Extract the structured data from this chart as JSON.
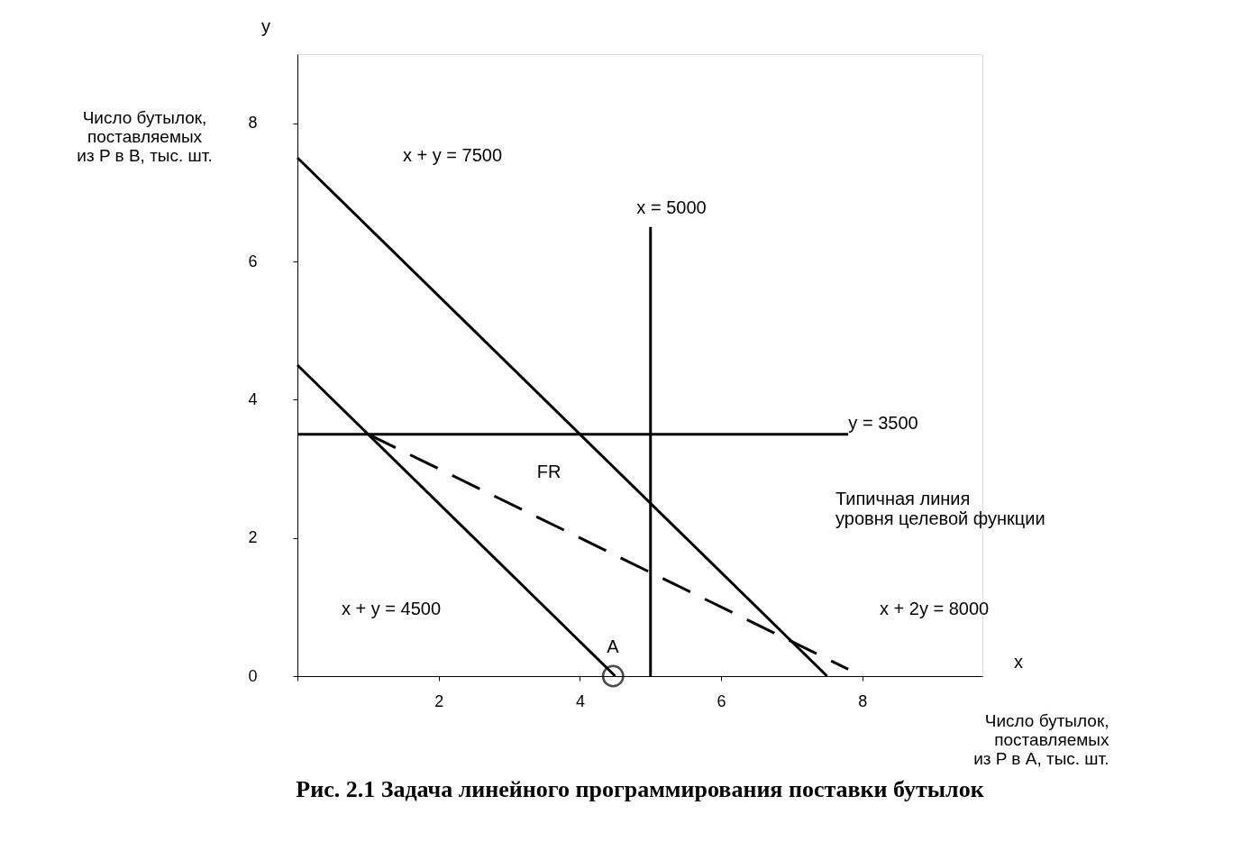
{
  "chart_data": {
    "type": "line",
    "title": "Рис. 2.1   Задача линейного программирования поставки бутылок",
    "xlabel": "Число бутылок,\nпоставляемых\nиз P в A, тыс. шт.",
    "ylabel": "Число бутылок,\nпоставляемых\nиз P в B, тыс. шт.",
    "xlim": [
      0,
      9.7
    ],
    "ylim": [
      0,
      9
    ],
    "xticks": [
      {
        "value": 0,
        "label": null
      },
      2,
      4,
      6,
      8
    ],
    "yticks": [
      0,
      2,
      4,
      6,
      8
    ],
    "grid": false,
    "series": [
      {
        "color": "#000000",
        "x": [
          0,
          7.5
        ],
        "values": [
          7.5,
          0
        ]
      },
      {
        "color": "#000000",
        "x": [
          0,
          4.5
        ],
        "values": [
          4.5,
          0
        ]
      },
      {
        "color": "#000000",
        "x": [
          5,
          5
        ],
        "values": [
          0,
          6.5
        ]
      },
      {
        "color": "#000000",
        "x": [
          0,
          7.8
        ],
        "values": [
          3.5,
          3.5
        ]
      },
      {
        "color": "#000000",
        "x": [
          1,
          7.8
        ],
        "values": [
          3.5,
          0.1
        ],
        "line_style": "dashed"
      },
      {
        "color": "#000000",
        "type": "scatter",
        "marker": "circle",
        "x": [
          4.47
        ],
        "values": [
          0
        ]
      }
    ],
    "annotations": [
      "y",
      "x",
      "x + y = 7500",
      "x = 5000",
      "y = 3500",
      "FR",
      "Типичная линия\nуровня целевой функции",
      "x + y = 4500",
      "x + 2y = 8000",
      "A"
    ]
  }
}
